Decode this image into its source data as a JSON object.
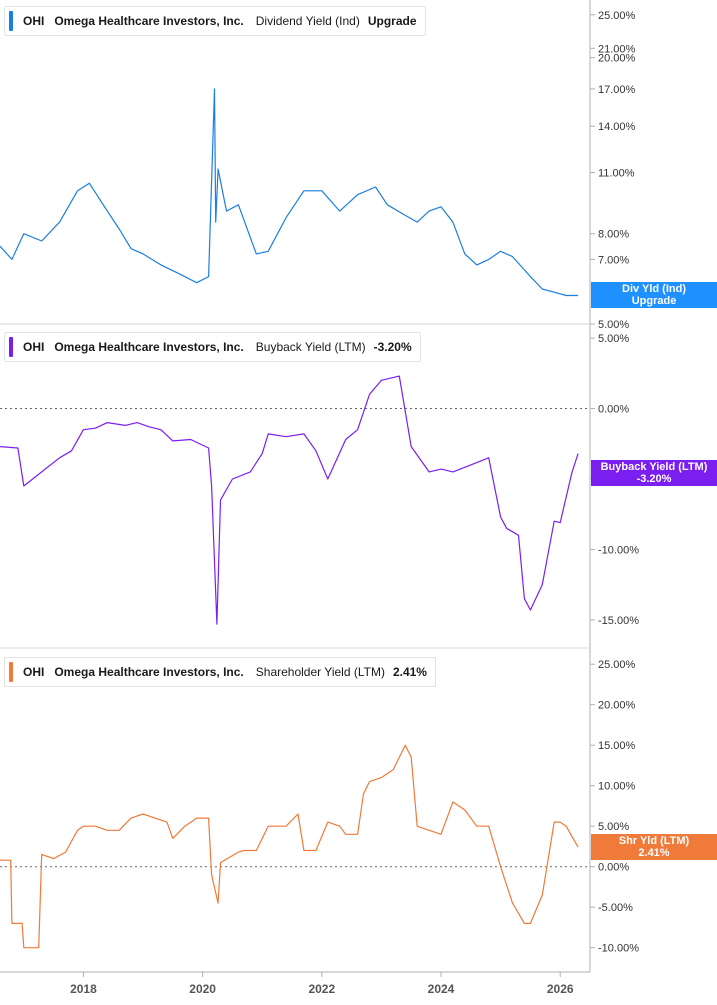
{
  "chart_data": [
    {
      "type": "line",
      "company": {
        "ticker": "OHI",
        "name": "Omega Healthcare Investors, Inc."
      },
      "legend": {
        "metric": "Dividend Yield (Ind)",
        "value": "Upgrade"
      },
      "series": [
        {
          "name": "Dividend Yield (Ind)",
          "color": "#1a7fe0",
          "x": [
            2016.6,
            2016.8,
            2017.0,
            2017.3,
            2017.6,
            2017.9,
            2018.1,
            2018.4,
            2018.6,
            2018.8,
            2019.0,
            2019.3,
            2019.6,
            2019.9,
            2020.1,
            2020.2,
            2020.22,
            2020.26,
            2020.4,
            2020.6,
            2020.9,
            2021.1,
            2021.4,
            2021.7,
            2022.0,
            2022.3,
            2022.6,
            2022.9,
            2023.1,
            2023.4,
            2023.6,
            2023.8,
            2024.0,
            2024.2,
            2024.4,
            2024.6,
            2024.8,
            2025.0,
            2025.2,
            2025.5,
            2025.7,
            2025.9,
            2026.1,
            2026.3
          ],
          "y": [
            7.5,
            7.0,
            8.0,
            7.7,
            8.5,
            10.0,
            10.4,
            9.0,
            8.2,
            7.4,
            7.2,
            6.8,
            6.5,
            6.2,
            6.4,
            17.0,
            8.5,
            11.2,
            9.0,
            9.3,
            7.2,
            7.3,
            8.7,
            10.0,
            10.0,
            9.0,
            9.8,
            10.2,
            9.3,
            8.8,
            8.5,
            9.0,
            9.2,
            8.5,
            7.2,
            6.8,
            7.0,
            7.3,
            7.1,
            6.4,
            6.0,
            5.9,
            5.8,
            5.8
          ],
          "label": "Div Yld (Ind)\nUpgrade"
        }
      ],
      "y_axis": {
        "scale": "log",
        "ylim": [
          5,
          27
        ],
        "tick_labels": [
          "25.00%",
          "21.00%",
          "20.00%",
          "17.00%",
          "14.00%",
          "11.00%",
          "8.00%",
          "7.00%",
          "5.00%"
        ]
      }
    },
    {
      "type": "line",
      "company": {
        "ticker": "OHI",
        "name": "Omega Healthcare Investors, Inc."
      },
      "legend": {
        "metric": "Buyback Yield (LTM)",
        "value": "-3.20%"
      },
      "series": [
        {
          "name": "Buyback Yield (LTM)",
          "color": "#7b1ff0",
          "x": [
            2016.6,
            2016.9,
            2017.0,
            2017.3,
            2017.6,
            2017.8,
            2018.0,
            2018.2,
            2018.4,
            2018.7,
            2018.9,
            2019.1,
            2019.3,
            2019.5,
            2019.8,
            2020.1,
            2020.15,
            2020.24,
            2020.3,
            2020.5,
            2020.8,
            2021.0,
            2021.1,
            2021.4,
            2021.7,
            2021.9,
            2022.1,
            2022.4,
            2022.6,
            2022.8,
            2023.0,
            2023.3,
            2023.5,
            2023.8,
            2024.0,
            2024.2,
            2024.5,
            2024.8,
            2025.0,
            2025.1,
            2025.3,
            2025.4,
            2025.5,
            2025.7,
            2025.9,
            2026.0,
            2026.2,
            2026.3
          ],
          "y": [
            -2.7,
            -2.8,
            -5.5,
            -4.5,
            -3.5,
            -3.0,
            -1.5,
            -1.4,
            -1.0,
            -1.2,
            -1.0,
            -1.3,
            -1.5,
            -2.3,
            -2.2,
            -2.8,
            -5.5,
            -15.3,
            -6.5,
            -5.0,
            -4.5,
            -3.2,
            -1.8,
            -2.0,
            -1.8,
            -3.0,
            -5.0,
            -2.2,
            -1.5,
            1.0,
            2.0,
            2.3,
            -2.7,
            -4.5,
            -4.3,
            -4.5,
            -4.0,
            -3.5,
            -7.7,
            -8.5,
            -9.0,
            -13.5,
            -14.3,
            -12.5,
            -8.0,
            -8.1,
            -4.5,
            -3.2
          ],
          "label": "Buyback Yield (LTM)\n-3.20%"
        }
      ],
      "y_axis": {
        "ylim": [
          -17,
          6
        ],
        "reference_line": 0,
        "tick_labels": [
          "5.00%",
          "0.00%",
          "-5.00%",
          "-10.00%",
          "-15.00%"
        ]
      }
    },
    {
      "type": "line",
      "company": {
        "ticker": "OHI",
        "name": "Omega Healthcare Investors, Inc."
      },
      "legend": {
        "metric": "Shareholder Yield (LTM)",
        "value": "2.41%"
      },
      "series": [
        {
          "name": "Shareholder Yield (LTM)",
          "color": "#f07a3a",
          "x": [
            2016.6,
            2016.78,
            2016.8,
            2016.97,
            2017.0,
            2017.25,
            2017.3,
            2017.5,
            2017.7,
            2017.9,
            2018.0,
            2018.2,
            2018.4,
            2018.6,
            2018.8,
            2019.0,
            2019.2,
            2019.4,
            2019.5,
            2019.7,
            2019.9,
            2020.1,
            2020.15,
            2020.26,
            2020.3,
            2020.6,
            2020.7,
            2020.9,
            2021.1,
            2021.4,
            2021.6,
            2021.7,
            2021.9,
            2022.1,
            2022.3,
            2022.4,
            2022.5,
            2022.6,
            2022.7,
            2022.8,
            2023.0,
            2023.2,
            2023.4,
            2023.5,
            2023.6,
            2023.8,
            2024.0,
            2024.2,
            2024.4,
            2024.6,
            2024.8,
            2025.0,
            2025.2,
            2025.4,
            2025.5,
            2025.7,
            2025.9,
            2026.0,
            2026.1,
            2026.3
          ],
          "y": [
            0.8,
            0.8,
            -7.0,
            -7.0,
            -10.0,
            -10.0,
            1.5,
            1.0,
            1.8,
            4.5,
            5.0,
            5.0,
            4.5,
            4.5,
            6.0,
            6.5,
            6.0,
            5.5,
            3.5,
            5.0,
            6.0,
            6.0,
            -1.0,
            -4.5,
            0.5,
            1.8,
            2.0,
            2.0,
            5.0,
            5.0,
            6.5,
            2.0,
            2.0,
            5.5,
            5.0,
            4.0,
            4.0,
            4.0,
            9.0,
            10.5,
            11.0,
            12.0,
            15.0,
            13.5,
            5.0,
            4.5,
            4.0,
            8.0,
            7.0,
            5.0,
            5.0,
            0.0,
            -4.5,
            -7.0,
            -7.0,
            -3.5,
            5.5,
            5.5,
            5.0,
            2.41
          ],
          "label": "Shr Yld (LTM)\n2.41%"
        }
      ],
      "y_axis": {
        "ylim": [
          -13,
          27
        ],
        "reference_line": 0,
        "tick_labels": [
          "25.00%",
          "20.00%",
          "15.00%",
          "10.00%",
          "5.00%",
          "0.00%",
          "-5.00%",
          "-10.00%"
        ]
      }
    }
  ],
  "x_axis": {
    "range": [
      2016.6,
      2026.5
    ],
    "tick_labels": [
      "2018",
      "2020",
      "2022",
      "2024",
      "2026"
    ]
  },
  "colors": {
    "tag_div": "#1e90ff",
    "tag_buy": "#7b1ff0",
    "tag_shr": "#f07a3a",
    "axis": "#b0b0b0",
    "zero_line": "#666666"
  }
}
